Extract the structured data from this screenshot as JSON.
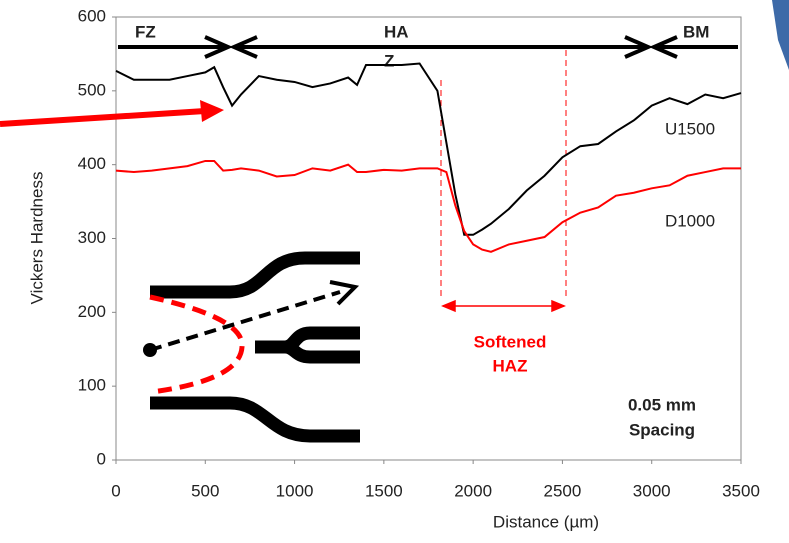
{
  "chart_data": {
    "type": "line",
    "xlabel": "Distance (µm)",
    "ylabel": "Vickers Hardness",
    "x": [
      0,
      100,
      200,
      300,
      400,
      500,
      550,
      600,
      650,
      700,
      800,
      900,
      1000,
      1100,
      1200,
      1300,
      1350,
      1400,
      1500,
      1600,
      1700,
      1800,
      1850,
      1900,
      1950,
      2000,
      2050,
      2100,
      2200,
      2300,
      2400,
      2500,
      2600,
      2700,
      2800,
      2900,
      3000,
      3100,
      3200,
      3300,
      3400,
      3500
    ],
    "series": [
      {
        "name": "U1500",
        "color": "#000000",
        "values": [
          527,
          515,
          515,
          515,
          520,
          525,
          532,
          505,
          480,
          495,
          520,
          515,
          512,
          505,
          510,
          518,
          508,
          535,
          535,
          535,
          537,
          500,
          430,
          360,
          305,
          305,
          312,
          320,
          340,
          365,
          385,
          410,
          425,
          428,
          445,
          460,
          480,
          490,
          482,
          495,
          490,
          497
        ]
      },
      {
        "name": "D1000",
        "color": "#ff0000",
        "values": [
          392,
          390,
          392,
          395,
          398,
          405,
          405,
          392,
          393,
          395,
          392,
          384,
          386,
          395,
          392,
          400,
          390,
          390,
          393,
          392,
          395,
          395,
          390,
          345,
          310,
          292,
          285,
          282,
          292,
          297,
          302,
          322,
          335,
          342,
          358,
          362,
          368,
          372,
          385,
          390,
          395,
          395
        ]
      }
    ],
    "xlim": [
      0,
      3500
    ],
    "xticks": [
      0,
      500,
      1000,
      1500,
      2000,
      2500,
      3000,
      3500
    ],
    "ylim": [
      0,
      600
    ],
    "yticks": [
      0,
      100,
      200,
      300,
      400,
      500,
      600
    ],
    "grid": false,
    "zones": [
      "FZ",
      "HA",
      "Z",
      "BM"
    ],
    "softened_label": [
      "Softened",
      "HAZ"
    ],
    "spacing_label": [
      "0.05 mm",
      "Spacing"
    ]
  }
}
